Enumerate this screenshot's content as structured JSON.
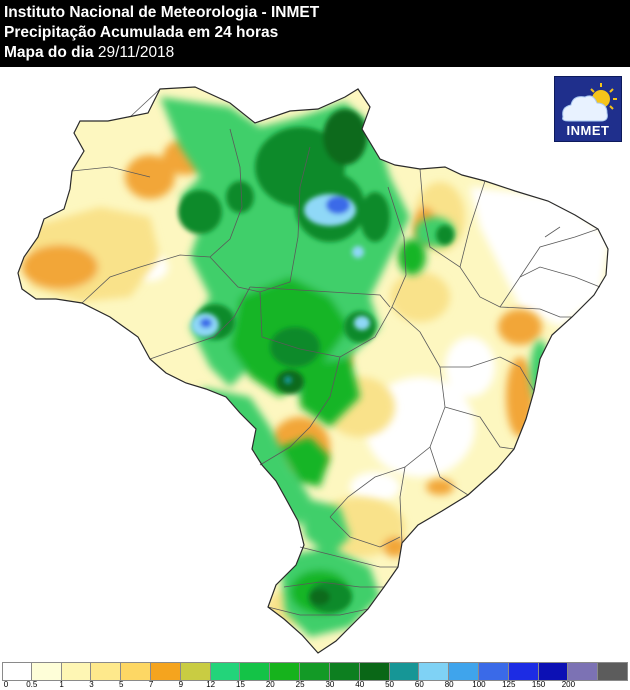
{
  "header": {
    "line1": "Instituto Nacional de Meteorologia - INMET",
    "line2": "Precipitação Acumulada em 24 horas",
    "line3_prefix": "Mapa do dia ",
    "line3_date": "29/11/2018"
  },
  "logo": {
    "text": "INMET"
  },
  "legend": {
    "colors": [
      "#ffffff",
      "#fefed8",
      "#fef6b4",
      "#fee98c",
      "#fdd764",
      "#f5a41e",
      "#c9cc42",
      "#23d47a",
      "#14c347",
      "#16b31c",
      "#139a26",
      "#0d7f20",
      "#0a6717",
      "#169696",
      "#7fd2f5",
      "#3fa4ec",
      "#3a6ae8",
      "#1c2ce4",
      "#0c10b4",
      "#7c72b4",
      "#5c5c5c"
    ],
    "ticks": [
      "0",
      "0.5",
      "1",
      "3",
      "5",
      "7",
      "9",
      "12",
      "15",
      "20",
      "25",
      "30",
      "40",
      "50",
      "60",
      "80",
      "100",
      "125",
      "150",
      "200"
    ]
  },
  "colors": {
    "yellow_light": "#fdf7c0",
    "yellow": "#f9e28a",
    "orange": "#f2a637",
    "green_light": "#3fcf6b",
    "green": "#12b528",
    "green_dark": "#0e8a2a",
    "green_darker": "#0a6a1c",
    "blue_light": "#8fd8f7",
    "blue": "#3a6ae8"
  }
}
